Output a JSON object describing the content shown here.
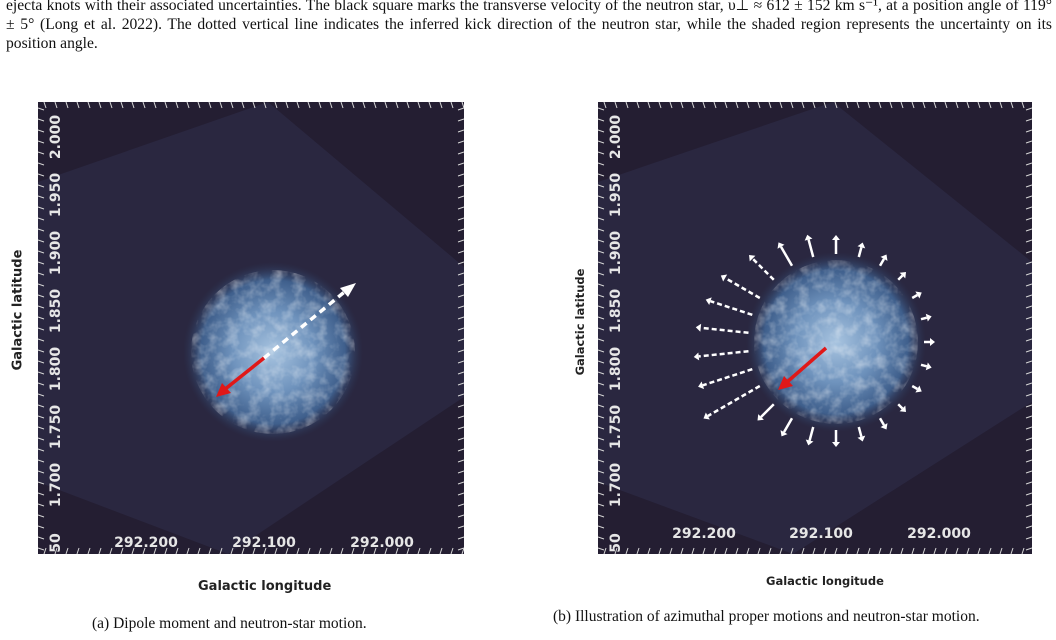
{
  "caption_top": "ejecta knots with their associated uncertainties. The black square marks the transverse velocity of the neutron star, υ⊥ ≈ 612 ± 152 km s⁻¹, at a position angle of 119° ± 5° (Long et al. 2022). The dotted vertical line indicates the inferred kick direction of the neutron star, while the shaded region represents the uncertainty on its position angle.",
  "panel_a": {
    "ylabel": "Galactic latitude",
    "xlabel": "Galactic longitude",
    "y_ticks": [
      "2.000",
      "1.950",
      "1.900",
      "1.850",
      "1.800",
      "1.750",
      "1.700",
      "50"
    ],
    "x_ticks": [
      "292.200",
      "292.100",
      "292.000"
    ],
    "subcaption": "(a) Dipole moment and neutron-star motion."
  },
  "panel_b": {
    "ylabel": "Galactic latitude",
    "xlabel": "Galactic longitude",
    "y_ticks": [
      "2.000",
      "1.950",
      "1.900",
      "1.850",
      "1.800",
      "1.750",
      "1.700",
      "50"
    ],
    "x_ticks": [
      "292.200",
      "292.100",
      "292.000"
    ],
    "subcaption": "(b) Illustration of azimuthal proper motions and neutron-star motion."
  },
  "colors": {
    "background_dark": "#241e32",
    "remnant": "#8fb3d6",
    "neutron_star_arrow": "#e01818",
    "dipole_arrow": "#ffffff"
  }
}
